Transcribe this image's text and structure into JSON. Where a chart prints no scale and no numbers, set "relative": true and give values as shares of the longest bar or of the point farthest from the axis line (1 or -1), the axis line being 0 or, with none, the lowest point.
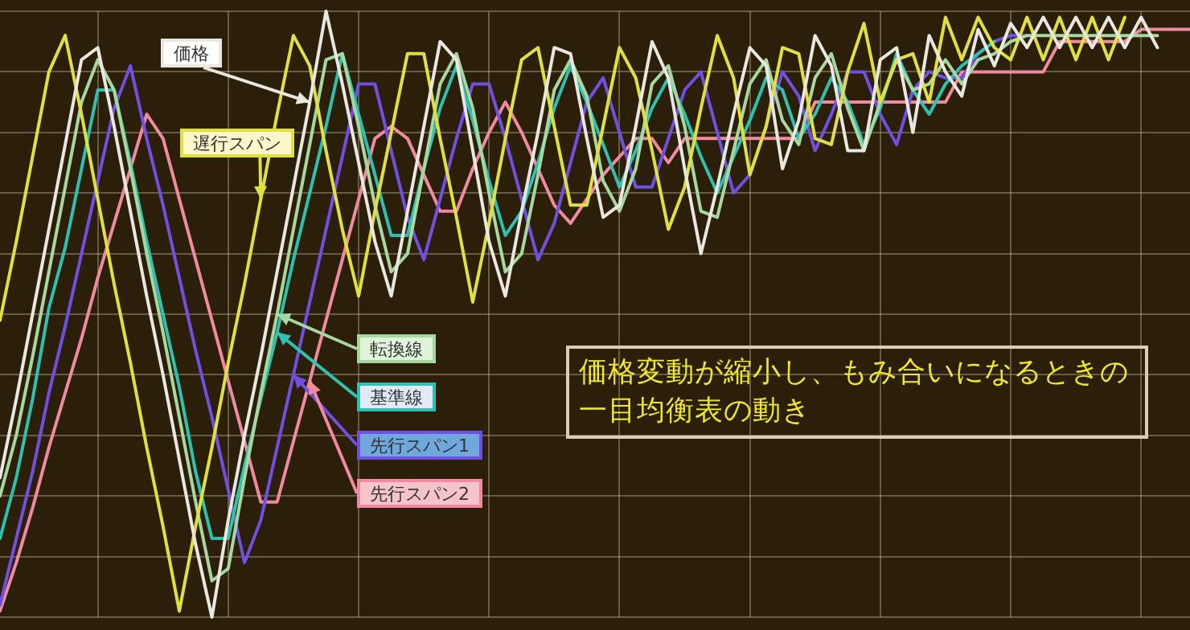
{
  "chart_data": {
    "type": "line",
    "relative": true,
    "grid": true,
    "tick_labels": false,
    "categories": [
      null,
      null,
      null,
      null,
      null,
      null,
      null,
      null,
      null,
      null,
      null,
      null,
      null,
      null,
      null,
      null,
      null,
      null,
      null,
      null,
      null,
      null,
      null,
      null,
      null,
      null,
      null,
      null,
      null,
      null,
      null,
      null,
      null,
      null,
      null,
      null,
      null,
      null,
      null,
      null,
      null,
      null,
      null,
      null,
      null,
      null,
      null,
      null,
      null,
      null,
      null,
      null,
      null,
      null,
      null,
      null,
      null,
      null,
      null,
      null,
      null,
      null,
      null,
      null,
      null,
      null,
      null,
      null,
      null,
      null,
      null,
      null,
      null,
      null
    ],
    "series": [
      {
        "name": "価格",
        "color": "#e8e8e0",
        "values": [
          0.23,
          0.36,
          0.5,
          0.64,
          0.78,
          0.92,
          0.94,
          0.81,
          0.67,
          0.53,
          0.4,
          0.26,
          0.12,
          0.0,
          0.16,
          0.3,
          0.43,
          0.57,
          0.71,
          0.85,
          1.0,
          0.88,
          0.75,
          0.62,
          0.53,
          0.67,
          0.81,
          0.95,
          0.92,
          0.77,
          0.62,
          0.53,
          0.67,
          0.8,
          0.94,
          0.93,
          0.79,
          0.66,
          0.68,
          0.81,
          0.95,
          0.89,
          0.74,
          0.6,
          0.71,
          0.83,
          0.94,
          0.91,
          0.74,
          0.82,
          0.96,
          0.91,
          0.77,
          0.77,
          0.92,
          0.94,
          0.8,
          0.96,
          0.9,
          0.86,
          0.97,
          0.91,
          0.98,
          0.94,
          0.99,
          0.94,
          0.99,
          0.94,
          0.99,
          0.94,
          0.99,
          0.94,
          null,
          null
        ]
      },
      {
        "name": "遅行スパン",
        "color": "#e0e040",
        "values": [
          0.49,
          0.62,
          0.76,
          0.9,
          0.96,
          0.83,
          0.69,
          0.55,
          0.42,
          0.28,
          0.15,
          0.01,
          0.15,
          0.28,
          0.42,
          0.55,
          0.69,
          0.83,
          0.96,
          0.91,
          0.77,
          0.64,
          0.53,
          0.67,
          0.8,
          0.93,
          0.93,
          0.79,
          0.66,
          0.52,
          0.65,
          0.79,
          0.92,
          0.94,
          0.81,
          0.68,
          0.68,
          0.81,
          0.94,
          0.89,
          0.77,
          0.64,
          0.71,
          0.84,
          0.96,
          0.89,
          0.73,
          0.81,
          0.94,
          0.93,
          0.79,
          0.78,
          0.9,
          0.98,
          0.85,
          0.92,
          0.93,
          0.85,
          0.99,
          0.92,
          0.99,
          0.94,
          0.92,
          0.99,
          0.92,
          0.99,
          0.92,
          0.99,
          0.92,
          0.99,
          null,
          null,
          null,
          null
        ]
      },
      {
        "name": "転換線",
        "color": "#a8d8a0",
        "values": [
          0.2,
          0.3,
          0.43,
          0.57,
          0.71,
          0.85,
          0.92,
          0.87,
          0.74,
          0.6,
          0.47,
          0.33,
          0.19,
          0.06,
          0.08,
          0.23,
          0.37,
          0.5,
          0.64,
          0.78,
          0.92,
          0.93,
          0.81,
          0.68,
          0.57,
          0.6,
          0.74,
          0.88,
          0.93,
          0.84,
          0.7,
          0.57,
          0.6,
          0.73,
          0.87,
          0.92,
          0.86,
          0.72,
          0.67,
          0.74,
          0.88,
          0.91,
          0.81,
          0.67,
          0.66,
          0.77,
          0.88,
          0.92,
          0.82,
          0.78,
          0.89,
          0.93,
          0.84,
          0.77,
          0.85,
          0.92,
          0.87,
          0.88,
          0.92,
          0.88,
          0.92,
          0.93,
          0.95,
          0.96,
          0.96,
          0.96,
          0.96,
          0.96,
          0.96,
          0.96,
          0.96,
          0.96,
          null,
          null
        ]
      },
      {
        "name": "基準線",
        "color": "#30c0b0",
        "values": [
          0.13,
          0.23,
          0.36,
          0.51,
          0.61,
          0.74,
          0.87,
          0.87,
          0.75,
          0.62,
          0.5,
          0.38,
          0.24,
          0.13,
          0.13,
          0.25,
          0.36,
          0.47,
          0.59,
          0.7,
          0.81,
          0.93,
          0.83,
          0.73,
          0.63,
          0.63,
          0.74,
          0.84,
          0.91,
          0.82,
          0.72,
          0.63,
          0.67,
          0.75,
          0.84,
          0.91,
          0.85,
          0.78,
          0.71,
          0.77,
          0.84,
          0.89,
          0.83,
          0.76,
          0.7,
          0.76,
          0.82,
          0.89,
          0.87,
          0.79,
          0.83,
          0.89,
          0.85,
          0.78,
          0.84,
          0.93,
          0.87,
          0.83,
          0.88,
          0.91,
          0.93,
          0.95,
          null,
          null,
          null,
          null,
          null,
          null,
          null,
          null,
          null,
          null,
          null,
          null
        ]
      },
      {
        "name": "先行スパン1",
        "color": "#7050e0",
        "values": [
          0.02,
          0.13,
          0.24,
          0.37,
          0.48,
          0.6,
          0.72,
          0.84,
          0.91,
          0.79,
          0.68,
          0.56,
          0.44,
          0.33,
          0.21,
          0.09,
          0.16,
          0.28,
          0.4,
          0.52,
          0.64,
          0.76,
          0.88,
          0.88,
          0.77,
          0.66,
          0.59,
          0.69,
          0.79,
          0.88,
          0.88,
          0.79,
          0.69,
          0.59,
          0.65,
          0.75,
          0.85,
          0.89,
          0.8,
          0.71,
          0.71,
          0.79,
          0.87,
          0.9,
          0.8,
          0.7,
          0.73,
          0.81,
          0.9,
          0.86,
          0.77,
          0.83,
          0.9,
          0.9,
          0.83,
          0.78,
          0.87,
          0.9,
          0.89,
          0.89,
          0.93,
          0.95,
          0.96,
          0.96,
          null,
          null,
          null,
          null,
          null,
          null,
          null,
          null,
          null,
          null
        ]
      },
      {
        "name": "先行スパン2",
        "color": "#f08aa0",
        "values": [
          0.01,
          0.09,
          0.18,
          0.28,
          0.37,
          0.46,
          0.56,
          0.65,
          0.74,
          0.83,
          0.79,
          0.69,
          0.59,
          0.49,
          0.39,
          0.29,
          0.19,
          0.19,
          0.29,
          0.39,
          0.49,
          0.59,
          0.69,
          0.79,
          0.81,
          0.79,
          0.73,
          0.67,
          0.67,
          0.74,
          0.8,
          0.85,
          0.8,
          0.74,
          0.68,
          0.65,
          0.69,
          0.73,
          0.76,
          0.79,
          0.79,
          0.75,
          0.79,
          0.79,
          0.79,
          0.79,
          0.79,
          0.79,
          0.79,
          0.79,
          0.85,
          0.85,
          0.85,
          0.85,
          0.85,
          0.85,
          0.85,
          0.85,
          0.85,
          0.9,
          0.9,
          0.9,
          0.9,
          0.9,
          0.9,
          0.95,
          0.95,
          0.95,
          0.95,
          0.95,
          0.97,
          0.97,
          0.97,
          0.97
        ]
      }
    ],
    "annotations": [
      "価格変動が縮小し、もみ合いになるときの一目均衡表の動き"
    ]
  }
}
